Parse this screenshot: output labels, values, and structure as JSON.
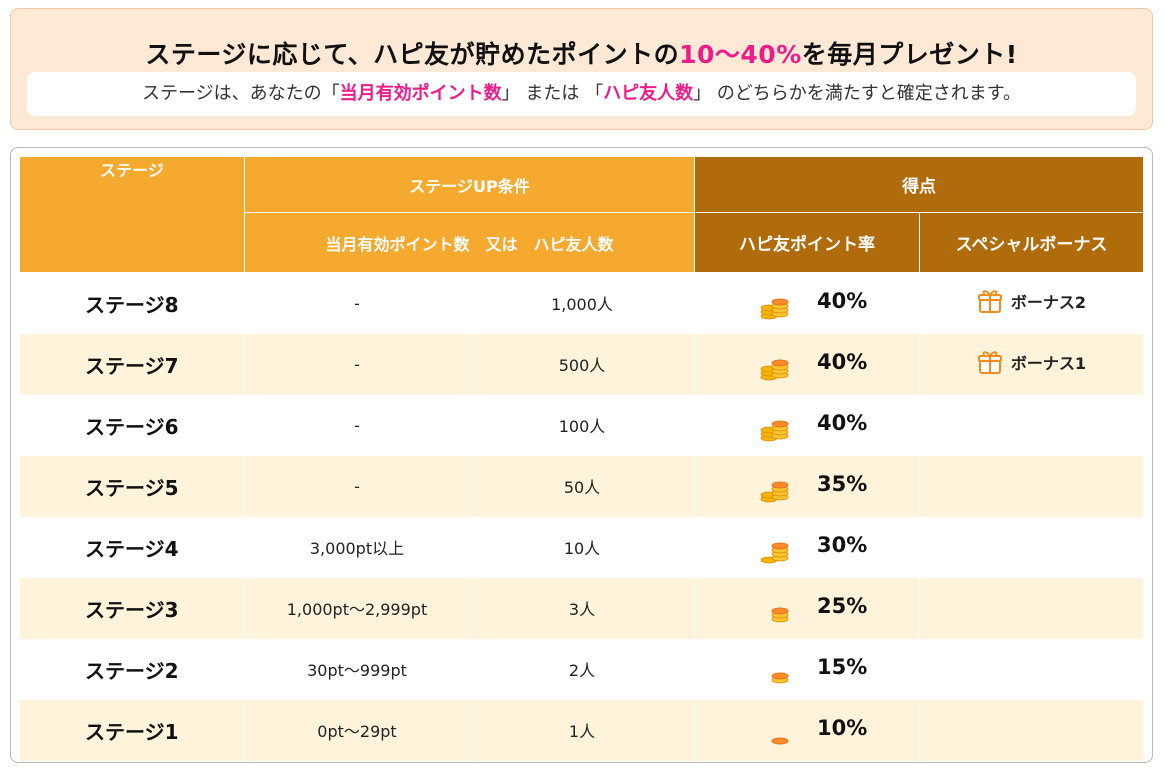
{
  "banner": {
    "title_before": "ステージに応じて、ハピ友が貯めたポイントの",
    "title_accent": "10〜40%",
    "title_after": "を毎月プレゼント!",
    "sub_prefix": "ステージは、あなたの",
    "open_bracket": "「",
    "close_bracket": "」",
    "sub_hl1": "当月有効ポイント数",
    "sub_or": "または",
    "sub_hl2": "ハピ友人数",
    "sub_suffix": "のどちらかを満たすと確定されます。"
  },
  "colors": {
    "accent": "#ee1c8a",
    "header_orange": "#f6a92f",
    "header_brown": "#b06b0a",
    "row_alt": "#fff3dc",
    "banner_bg": "#fde9d6"
  },
  "table": {
    "headers": {
      "stage": "ステージ",
      "condition": "ステージUP条件",
      "condition_sub": "当月有効ポイント数　又は　ハピ友人数",
      "score": "得点",
      "rate": "ハピ友ポイント率",
      "bonus": "スペシャルボーナス"
    },
    "rows": [
      {
        "stage": "ステージ8",
        "points": "-",
        "friends": "1,000人",
        "rate": "40%",
        "coin_icon": "coins-stack-icon",
        "bonus": "ボーナス2",
        "bonus_icon": "gift-icon"
      },
      {
        "stage": "ステージ7",
        "points": "-",
        "friends": "500人",
        "rate": "40%",
        "coin_icon": "coins-stack-icon",
        "bonus": "ボーナス1",
        "bonus_icon": "gift-icon"
      },
      {
        "stage": "ステージ6",
        "points": "-",
        "friends": "100人",
        "rate": "40%",
        "coin_icon": "coins-stack-icon",
        "bonus": "",
        "bonus_icon": ""
      },
      {
        "stage": "ステージ5",
        "points": "-",
        "friends": "50人",
        "rate": "35%",
        "coin_icon": "coins-stack-icon",
        "bonus": "",
        "bonus_icon": ""
      },
      {
        "stage": "ステージ4",
        "points": "3,000pt以上",
        "friends": "10人",
        "rate": "30%",
        "coin_icon": "coins-stack-icon",
        "bonus": "",
        "bonus_icon": ""
      },
      {
        "stage": "ステージ3",
        "points": "1,000pt〜2,999pt",
        "friends": "3人",
        "rate": "25%",
        "coin_icon": "coins-stack-icon",
        "bonus": "",
        "bonus_icon": ""
      },
      {
        "stage": "ステージ2",
        "points": "30pt〜999pt",
        "friends": "2人",
        "rate": "15%",
        "coin_icon": "coins-stack-icon",
        "bonus": "",
        "bonus_icon": ""
      },
      {
        "stage": "ステージ1",
        "points": "0pt〜29pt",
        "friends": "1人",
        "rate": "10%",
        "coin_icon": "coins-stack-icon",
        "bonus": "",
        "bonus_icon": ""
      }
    ]
  }
}
